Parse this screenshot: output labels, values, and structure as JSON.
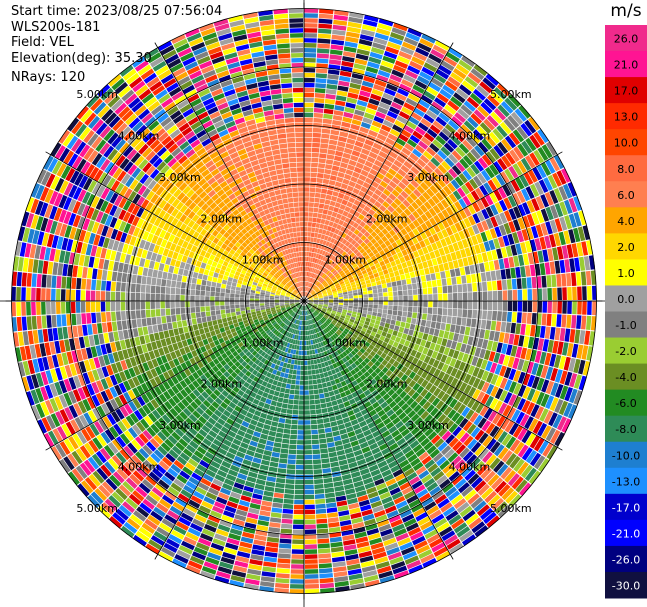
{
  "header": {
    "start_time": "Start time: 2023/08/25 07:56:04",
    "instrument": "WLS200s-181",
    "field": "Field: VEL",
    "elevation": "Elevation(deg): 35.30",
    "nrays": "NRays: 120"
  },
  "colorbar": {
    "unit": "m/s",
    "ticks": [
      "26.0",
      "21.0",
      "17.0",
      "13.0",
      "10.0",
      "8.0",
      "6.0",
      "4.0",
      "2.0",
      "1.0",
      "0.0",
      "-1.0",
      "-2.0",
      "-4.0",
      "-6.0",
      "-8.0",
      "-10.0",
      "-13.0",
      "-17.0",
      "-21.0",
      "-26.0",
      "-30.0"
    ],
    "colors": [
      "#f02a8c",
      "#ff1493",
      "#e00000",
      "#ff2a00",
      "#ff4500",
      "#ff6b40",
      "#ff7f50",
      "#ffa500",
      "#ffd700",
      "#ffff00",
      "#a0a0a0",
      "#808080",
      "#9acd32",
      "#6b8e23",
      "#228b22",
      "#2e8b57",
      "#1e7fd0",
      "#1e90ff",
      "#0000cd",
      "#0000ff",
      "#000080",
      "#101040"
    ]
  },
  "chart_data": {
    "type": "heatmap",
    "title": "",
    "projection": "polar PPI",
    "field": "VEL",
    "units": "m/s",
    "range_rings": [
      {
        "label": "1.00km",
        "km": 1.0
      },
      {
        "label": "2.00km",
        "km": 2.0
      },
      {
        "label": "3.00km",
        "km": 3.0
      },
      {
        "label": "4.00km",
        "km": 4.0
      },
      {
        "label": "5.00km",
        "km": 5.0
      }
    ],
    "rays": 120,
    "max_range_km": 5.1,
    "color_scale_min": -30.0,
    "color_scale_max": 26.0,
    "sectors": [
      {
        "direction": "north",
        "value_approx": 8.0
      },
      {
        "direction": "east",
        "value_approx": 1.0
      },
      {
        "direction": "south",
        "value_approx": -8.0
      },
      {
        "direction": "west",
        "value_approx": 0.0
      }
    ],
    "noise_beyond_km": 3.2
  }
}
